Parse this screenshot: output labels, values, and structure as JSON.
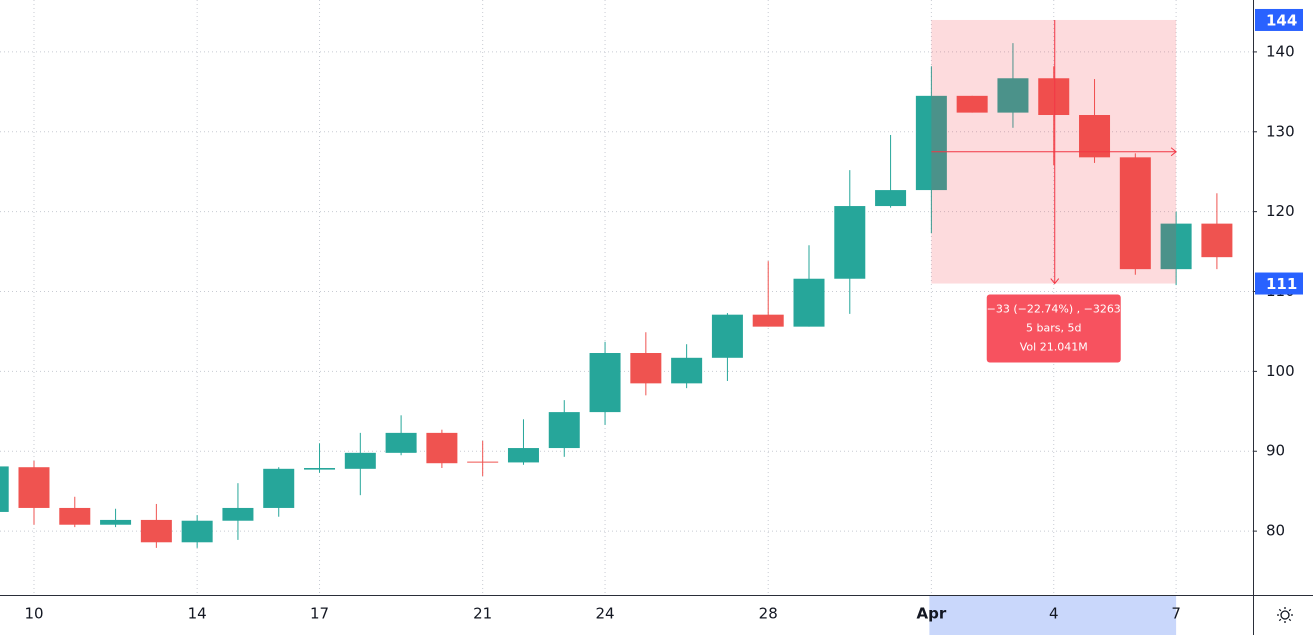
{
  "chart_data": {
    "type": "candlestick",
    "categories": [
      null,
      "10",
      null,
      null,
      null,
      "14",
      null,
      null,
      "17",
      null,
      null,
      null,
      "21",
      null,
      null,
      "24",
      null,
      null,
      null,
      "28",
      null,
      null,
      null,
      "Apr",
      null,
      null,
      "4",
      null,
      null,
      "7",
      null
    ],
    "open": [
      82.4,
      88.0,
      82.9,
      80.8,
      81.4,
      78.6,
      81.3,
      82.9,
      87.7,
      87.8,
      89.8,
      92.3,
      88.7,
      88.6,
      90.4,
      94.9,
      102.3,
      98.5,
      101.7,
      107.1,
      105.6,
      111.6,
      120.7,
      122.7,
      134.5,
      132.4,
      136.7,
      132.1,
      126.8,
      112.8,
      118.5
    ],
    "high": [
      88.1,
      88.8,
      84.3,
      82.8,
      83.4,
      82.0,
      86.0,
      88.0,
      91.0,
      92.3,
      94.5,
      92.7,
      91.3,
      94.0,
      96.4,
      103.7,
      104.9,
      103.4,
      107.3,
      113.8,
      115.8,
      125.2,
      129.6,
      138.2,
      134.5,
      141.1,
      138.2,
      136.6,
      127.3,
      120.0,
      122.3
    ],
    "low": [
      82.4,
      80.8,
      80.5,
      80.5,
      77.9,
      77.9,
      78.9,
      81.8,
      87.3,
      84.5,
      89.5,
      87.9,
      86.9,
      88.3,
      89.3,
      93.3,
      97.0,
      97.9,
      98.8,
      105.6,
      105.6,
      107.2,
      120.5,
      117.3,
      132.4,
      130.5,
      125.8,
      126.1,
      112.1,
      110.8,
      112.8
    ],
    "close": [
      88.1,
      82.9,
      80.8,
      81.4,
      78.6,
      81.3,
      82.9,
      87.8,
      87.9,
      89.8,
      92.3,
      88.5,
      88.6,
      90.4,
      94.9,
      102.3,
      98.5,
      101.7,
      107.1,
      105.6,
      111.6,
      120.7,
      122.7,
      134.5,
      132.4,
      136.7,
      132.1,
      126.8,
      112.8,
      118.5,
      114.3
    ],
    "up_color": "#26a69a",
    "down_color": "#ef5350",
    "ylim": [
      72,
      146.5
    ],
    "yticks": [
      80,
      90,
      100,
      110,
      120,
      130,
      140
    ],
    "grid": true,
    "measure": {
      "high": 144,
      "low": 111,
      "lines": [
        "−33 (−22.74%) , −3263",
        "5 bars, 5d",
        "Vol 21.041M"
      ]
    }
  }
}
